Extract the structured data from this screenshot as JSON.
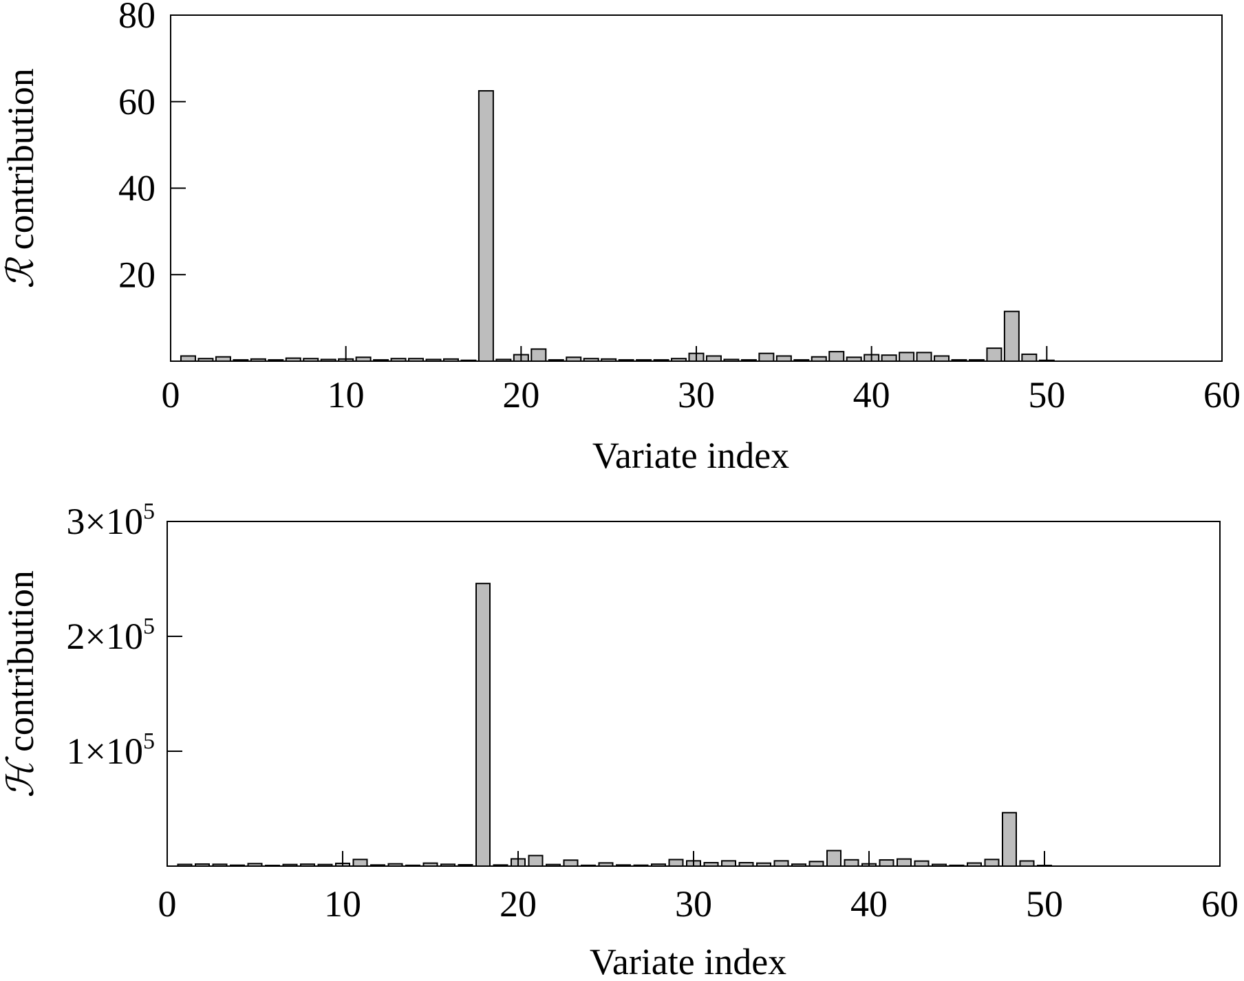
{
  "chart_data": [
    {
      "type": "bar",
      "xlabel": "Variate index",
      "ylabel_symbol": "ℛ",
      "ylabel": "contribution",
      "xlim": [
        0,
        60
      ],
      "ylim": [
        0,
        80
      ],
      "xticks": [
        "0",
        "10",
        "20",
        "30",
        "40",
        "50",
        "60"
      ],
      "yticks": [
        {
          "value": 20,
          "label": "20"
        },
        {
          "value": 40,
          "label": "40"
        },
        {
          "value": 60,
          "label": "60"
        },
        {
          "value": 80,
          "label": "80"
        }
      ],
      "x": [
        1,
        2,
        3,
        4,
        5,
        6,
        7,
        8,
        9,
        10,
        11,
        12,
        13,
        14,
        15,
        16,
        17,
        18,
        19,
        20,
        21,
        22,
        23,
        24,
        25,
        26,
        27,
        28,
        29,
        30,
        31,
        32,
        33,
        34,
        35,
        36,
        37,
        38,
        39,
        40,
        41,
        42,
        43,
        44,
        45,
        46,
        47,
        48,
        49,
        50
      ],
      "values": [
        1.2,
        0.6,
        1.0,
        0.3,
        0.5,
        0.3,
        0.7,
        0.6,
        0.4,
        0.5,
        0.9,
        0.3,
        0.6,
        0.6,
        0.4,
        0.5,
        0.2,
        62.5,
        0.4,
        1.5,
        2.8,
        0.3,
        0.9,
        0.6,
        0.5,
        0.3,
        0.3,
        0.3,
        0.6,
        1.8,
        1.2,
        0.4,
        0.3,
        1.8,
        1.2,
        0.3,
        1.0,
        2.2,
        0.9,
        1.5,
        1.4,
        2.0,
        2.0,
        1.2,
        0.3,
        0.3,
        3.0,
        11.5,
        1.6,
        0.2
      ],
      "bar_color": "#bdbdbd"
    },
    {
      "type": "bar",
      "xlabel": "Variate index",
      "ylabel_symbol": "ℋ",
      "ylabel": "contribution",
      "xlim": [
        0,
        60
      ],
      "ylim": [
        0,
        300000
      ],
      "xticks": [
        "0",
        "10",
        "20",
        "30",
        "40",
        "50",
        "60"
      ],
      "yticks": [
        {
          "value": 100000,
          "label": "1×10",
          "exp": "5"
        },
        {
          "value": 200000,
          "label": "2×10",
          "exp": "5"
        },
        {
          "value": 300000,
          "label": "3×10",
          "exp": "5"
        }
      ],
      "x": [
        1,
        2,
        3,
        4,
        5,
        6,
        7,
        8,
        9,
        10,
        11,
        12,
        13,
        14,
        15,
        16,
        17,
        18,
        19,
        20,
        21,
        22,
        23,
        24,
        25,
        26,
        27,
        28,
        29,
        30,
        31,
        32,
        33,
        34,
        35,
        36,
        37,
        38,
        39,
        40,
        41,
        42,
        43,
        44,
        45,
        46,
        47,
        48,
        49,
        50
      ],
      "values": [
        1500,
        1800,
        1600,
        800,
        2200,
        600,
        1400,
        1700,
        1400,
        2400,
        5800,
        1000,
        2000,
        700,
        2600,
        1600,
        1200,
        246000,
        1000,
        6300,
        9200,
        1400,
        5200,
        700,
        2800,
        1000,
        800,
        1700,
        5700,
        4600,
        3000,
        4600,
        3000,
        2600,
        4600,
        1700,
        4000,
        13500,
        5500,
        2000,
        5400,
        6200,
        4400,
        1500,
        700,
        2700,
        5800,
        46500,
        4500,
        300
      ],
      "bar_color": "#bdbdbd"
    }
  ]
}
